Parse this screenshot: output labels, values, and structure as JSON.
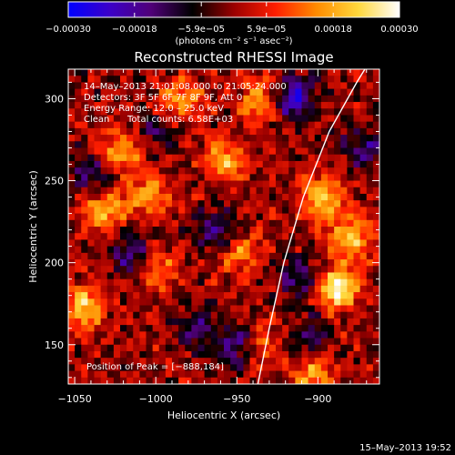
{
  "chart_data": {
    "type": "heatmap",
    "title": "Reconstructed RHESSI Image",
    "xlabel": "Heliocentric X (arcsec)",
    "ylabel": "Heliocentric Y (arcsec)",
    "xlim": [
      -1054,
      -862
    ],
    "ylim": [
      126,
      318
    ],
    "x_ticks": [
      -1050,
      -1000,
      -950,
      -900
    ],
    "x_tick_labels": [
      "−1050",
      "−1000",
      "−950",
      "−900"
    ],
    "y_ticks": [
      150,
      200,
      250,
      300
    ],
    "y_tick_labels": [
      "150",
      "200",
      "250",
      "300"
    ],
    "colorbar": {
      "range": [
        -0.0003,
        0.0003
      ],
      "tick_values": [
        -0.0003,
        -0.00018,
        -5.9e-05,
        5.9e-05,
        0.00018,
        0.0003
      ],
      "tick_labels": [
        "−0.00030",
        "−0.00018",
        "−5.9e−05",
        "5.9e−05",
        "0.00018",
        "0.00030"
      ],
      "unit_label": "(photons cm⁻² s⁻¹ asec⁻²)",
      "colors": [
        "#0000ff",
        "#3c00c8",
        "#500078",
        "#000000",
        "#9b0000",
        "#ff1e00",
        "#ff8c00",
        "#ffd83c",
        "#ffffff"
      ]
    },
    "annotations": [
      "14–May–2013 21:01:08.000 to 21:05:24.000",
      "Detectors: 3F 5F 6F 7F 8F 9F, Att 0",
      "Energy Range: 12.0 – 25.0 keV",
      "Clean",
      "Total counts: 6.58E+03"
    ],
    "peak_label": "Position of Peak = [−888,184]",
    "limb_curve": [
      [
        -937,
        126
      ],
      [
        -930,
        160
      ],
      [
        -921,
        200
      ],
      [
        -909,
        240
      ],
      [
        -893,
        280
      ],
      [
        -876,
        310
      ],
      [
        -871,
        318
      ]
    ],
    "limb_color": "#ffffff",
    "bright_sources": [
      {
        "x": -1044,
        "y": 172,
        "value": 0.00022
      },
      {
        "x": -1032,
        "y": 232,
        "value": 0.0002
      },
      {
        "x": -1022,
        "y": 268,
        "value": 0.00019
      },
      {
        "x": -1005,
        "y": 240,
        "value": 0.00016
      },
      {
        "x": -1000,
        "y": 195,
        "value": 0.00015
      },
      {
        "x": -985,
        "y": 298,
        "value": 0.00017
      },
      {
        "x": -958,
        "y": 262,
        "value": 0.00018
      },
      {
        "x": -948,
        "y": 205,
        "value": 0.00014
      },
      {
        "x": -935,
        "y": 298,
        "value": 0.0002
      },
      {
        "x": -935,
        "y": 150,
        "value": 0.00012
      },
      {
        "x": -897,
        "y": 240,
        "value": 0.00023
      },
      {
        "x": -888,
        "y": 184,
        "value": 0.00029
      },
      {
        "x": -880,
        "y": 215,
        "value": 0.00021
      },
      {
        "x": -903,
        "y": 130,
        "value": 0.00018
      }
    ],
    "dark_sources": [
      {
        "x": -1040,
        "y": 255,
        "value": -0.00014
      },
      {
        "x": -1015,
        "y": 205,
        "value": -0.00016
      },
      {
        "x": -975,
        "y": 160,
        "value": -0.00013
      },
      {
        "x": -962,
        "y": 220,
        "value": -0.00015
      },
      {
        "x": -950,
        "y": 150,
        "value": -0.00017
      },
      {
        "x": -915,
        "y": 300,
        "value": -0.00024
      },
      {
        "x": -910,
        "y": 190,
        "value": -0.00016
      },
      {
        "x": -905,
        "y": 155,
        "value": -0.00012
      },
      {
        "x": -872,
        "y": 270,
        "value": -0.00015
      },
      {
        "x": -1000,
        "y": 280,
        "value": -0.0001
      }
    ]
  },
  "footer": {
    "timestamp": "15–May–2013 19:52"
  }
}
